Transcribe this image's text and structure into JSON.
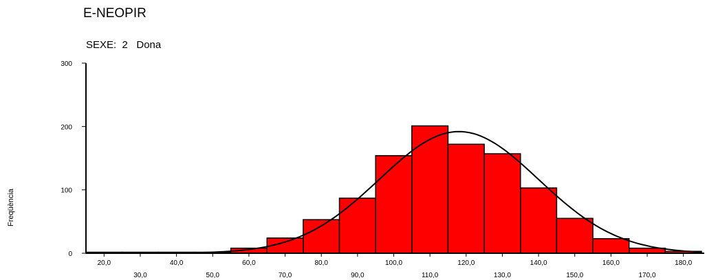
{
  "chart_data": {
    "type": "bar",
    "title": "E-NEOPIR",
    "subtitle": "SEXE:  2   Dona",
    "ylabel": "Freqüència",
    "xlabel": "",
    "ylim": [
      0,
      300
    ],
    "yticks": [
      0,
      100,
      200,
      300
    ],
    "xlim": [
      15,
      185
    ],
    "xticks_row1": [
      "20,0",
      "40,0",
      "60,0",
      "80,0",
      "100,0",
      "120,0",
      "140,0",
      "160,0",
      "180,0"
    ],
    "xticks_row2": [
      "30,0",
      "50,0",
      "70,0",
      "90,0",
      "110,0",
      "130,0",
      "150,0",
      "170,0"
    ],
    "bin_width": 10,
    "bins": [
      {
        "center": 20,
        "value": 1
      },
      {
        "center": 30,
        "value": 1
      },
      {
        "center": 40,
        "value": 0
      },
      {
        "center": 50,
        "value": 1
      },
      {
        "center": 60,
        "value": 8
      },
      {
        "center": 70,
        "value": 24
      },
      {
        "center": 80,
        "value": 53
      },
      {
        "center": 90,
        "value": 87
      },
      {
        "center": 100,
        "value": 154
      },
      {
        "center": 110,
        "value": 201
      },
      {
        "center": 120,
        "value": 172
      },
      {
        "center": 130,
        "value": 157
      },
      {
        "center": 140,
        "value": 103
      },
      {
        "center": 150,
        "value": 55
      },
      {
        "center": 160,
        "value": 23
      },
      {
        "center": 170,
        "value": 8
      },
      {
        "center": 180,
        "value": 3
      }
    ],
    "normal_curve": {
      "mean": 118,
      "sd": 22,
      "peak": 192
    },
    "colors": {
      "bar_fill": "#ff0000",
      "bar_stroke": "#000000",
      "curve": "#000000",
      "axis": "#000000"
    },
    "grid": false,
    "legend": "none"
  }
}
